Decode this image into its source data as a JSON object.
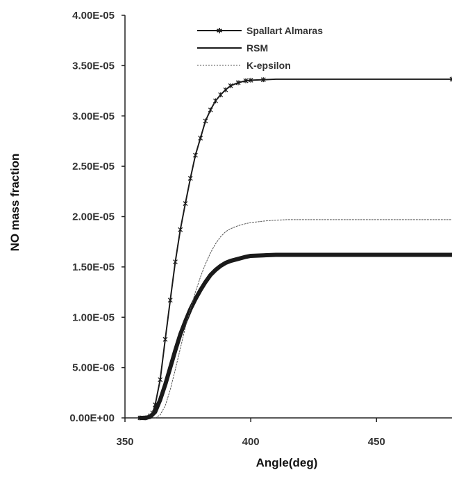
{
  "chart_data": {
    "type": "line",
    "title": "",
    "xlabel": "Angle(deg)",
    "ylabel": "NO mass fraction",
    "xlim": [
      350,
      480
    ],
    "ylim": [
      0,
      4e-05
    ],
    "grid": false,
    "legend_position": "top-center",
    "x_ticks": [
      "350",
      "400",
      "450"
    ],
    "x_tick_values": [
      350,
      400,
      450
    ],
    "y_ticks": [
      "0.00E+00",
      "5.00E-06",
      "1.00E-05",
      "1.50E-05",
      "2.00E-05",
      "2.50E-05",
      "3.00E-05",
      "3.50E-05",
      "4.00E-05"
    ],
    "y_tick_values": [
      0,
      5e-06,
      1e-05,
      1.5e-05,
      2e-05,
      2.5e-05,
      3e-05,
      3.5e-05,
      4e-05
    ],
    "series": [
      {
        "name": "Spallart Almaras",
        "style": "line-with-markers",
        "color": "#1a1a1a",
        "x": [
          356,
          358,
          360,
          361,
          362,
          364,
          366,
          368,
          370,
          372,
          374,
          376,
          378,
          380,
          382,
          384,
          386,
          388,
          390,
          392,
          395,
          398,
          400,
          405,
          410,
          420,
          440,
          460,
          480
        ],
        "y": [
          0,
          0,
          2e-07,
          5e-07,
          1.3e-06,
          3.8e-06,
          7.8e-06,
          1.17e-05,
          1.55e-05,
          1.87e-05,
          2.13e-05,
          2.38e-05,
          2.61e-05,
          2.78e-05,
          2.95e-05,
          3.06e-05,
          3.15e-05,
          3.21e-05,
          3.26e-05,
          3.3e-05,
          3.33e-05,
          3.35e-05,
          3.355e-05,
          3.36e-05,
          3.365e-05,
          3.365e-05,
          3.365e-05,
          3.365e-05,
          3.365e-05
        ]
      },
      {
        "name": "RSM",
        "style": "thick-line",
        "color": "#1a1a1a",
        "x": [
          356,
          358,
          360,
          362,
          364,
          366,
          368,
          370,
          372,
          374,
          376,
          378,
          380,
          382,
          384,
          386,
          388,
          390,
          392,
          395,
          398,
          400,
          405,
          410,
          420,
          440,
          460,
          480
        ],
        "y": [
          0,
          0,
          1e-07,
          6e-07,
          1.8e-06,
          3.3e-06,
          5e-06,
          6.7e-06,
          8.3e-06,
          9.6e-06,
          1.08e-05,
          1.18e-05,
          1.27e-05,
          1.35e-05,
          1.42e-05,
          1.47e-05,
          1.51e-05,
          1.54e-05,
          1.56e-05,
          1.58e-05,
          1.6e-05,
          1.61e-05,
          1.615e-05,
          1.62e-05,
          1.62e-05,
          1.62e-05,
          1.62e-05,
          1.62e-05
        ]
      },
      {
        "name": "K-epsilon",
        "style": "thin-dotted",
        "color": "#555555",
        "x": [
          362,
          364,
          366,
          368,
          370,
          372,
          374,
          376,
          378,
          380,
          382,
          384,
          386,
          388,
          390,
          392,
          395,
          398,
          400,
          405,
          410,
          415,
          420,
          430,
          440,
          460,
          480
        ],
        "y": [
          0,
          3e-07,
          1.2e-06,
          2.8e-06,
          4.8e-06,
          6.9e-06,
          9e-06,
          1.08e-05,
          1.25e-05,
          1.4e-05,
          1.53e-05,
          1.64e-05,
          1.73e-05,
          1.8e-05,
          1.85e-05,
          1.88e-05,
          1.91e-05,
          1.93e-05,
          1.94e-05,
          1.955e-05,
          1.965e-05,
          1.97e-05,
          1.97e-05,
          1.97e-05,
          1.97e-05,
          1.97e-05,
          1.97e-05
        ]
      }
    ]
  }
}
